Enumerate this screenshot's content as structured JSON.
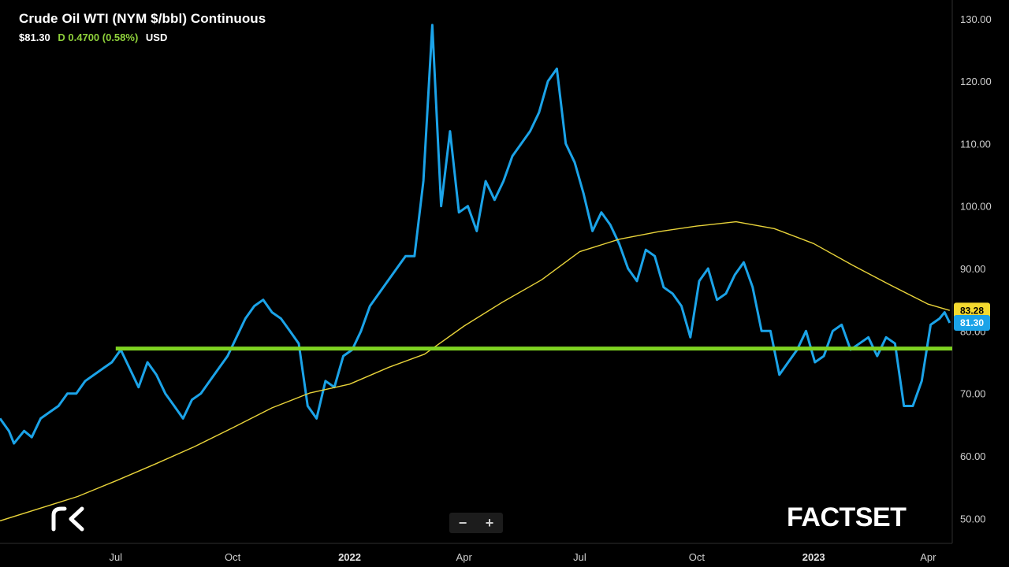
{
  "header": {
    "title": "Crude Oil WTI (NYM $/bbl) Continuous",
    "price": "$81.30",
    "change": "D 0.4700 (0.58%)",
    "currency": "USD"
  },
  "zoom": {
    "minus_label": "−",
    "plus_label": "+"
  },
  "brand": {
    "factset": "FACTSET",
    "logo_icon": "rk-logo-icon"
  },
  "colors": {
    "price_line": "#1ba3e8",
    "ma_line": "#e8d33a",
    "support_line": "#7ed321",
    "price_badge": "#1ba3e8",
    "ma_badge": "#f4d92f"
  },
  "chart_data": {
    "type": "line",
    "title": "Crude Oil WTI (NYM $/bbl) Continuous",
    "xlabel": "",
    "ylabel": "",
    "ylim": [
      46,
      133
    ],
    "x_tick_labels": [
      "Jul",
      "Oct",
      "2022",
      "Apr",
      "Jul",
      "Oct",
      "2023",
      "Apr"
    ],
    "x_tick_dates": [
      "2021-07-01",
      "2021-10-01",
      "2022-01-01",
      "2022-04-01",
      "2022-07-01",
      "2022-10-01",
      "2023-01-01",
      "2023-04-01"
    ],
    "x_range": [
      "2021-04-01",
      "2023-04-20"
    ],
    "y_ticks": [
      50,
      60,
      70,
      80,
      90,
      100,
      110,
      120,
      130
    ],
    "y_tick_labels": [
      "50.00",
      "60.00",
      "70.00",
      "80.00",
      "90.00",
      "100.00",
      "110.00",
      "120.00",
      "130.00"
    ],
    "grid": false,
    "series": [
      {
        "kind": "price",
        "points": [
          [
            "2021-04-01",
            66
          ],
          [
            "2021-04-08",
            64
          ],
          [
            "2021-04-12",
            62
          ],
          [
            "2021-04-20",
            64
          ],
          [
            "2021-04-26",
            63
          ],
          [
            "2021-05-03",
            66
          ],
          [
            "2021-05-10",
            67
          ],
          [
            "2021-05-17",
            68
          ],
          [
            "2021-05-24",
            70
          ],
          [
            "2021-05-31",
            70
          ],
          [
            "2021-06-07",
            72
          ],
          [
            "2021-06-14",
            73
          ],
          [
            "2021-06-21",
            74
          ],
          [
            "2021-06-28",
            75
          ],
          [
            "2021-07-05",
            77
          ],
          [
            "2021-07-12",
            74
          ],
          [
            "2021-07-19",
            71
          ],
          [
            "2021-07-26",
            75
          ],
          [
            "2021-08-02",
            73
          ],
          [
            "2021-08-09",
            70
          ],
          [
            "2021-08-16",
            68
          ],
          [
            "2021-08-23",
            66
          ],
          [
            "2021-08-30",
            69
          ],
          [
            "2021-09-06",
            70
          ],
          [
            "2021-09-13",
            72
          ],
          [
            "2021-09-20",
            74
          ],
          [
            "2021-09-27",
            76
          ],
          [
            "2021-10-04",
            79
          ],
          [
            "2021-10-11",
            82
          ],
          [
            "2021-10-18",
            84
          ],
          [
            "2021-10-25",
            85
          ],
          [
            "2021-11-01",
            83
          ],
          [
            "2021-11-08",
            82
          ],
          [
            "2021-11-15",
            80
          ],
          [
            "2021-11-22",
            78
          ],
          [
            "2021-11-29",
            68
          ],
          [
            "2021-12-06",
            66
          ],
          [
            "2021-12-13",
            72
          ],
          [
            "2021-12-20",
            71
          ],
          [
            "2021-12-27",
            76
          ],
          [
            "2022-01-03",
            77
          ],
          [
            "2022-01-10",
            80
          ],
          [
            "2022-01-17",
            84
          ],
          [
            "2022-01-24",
            86
          ],
          [
            "2022-01-31",
            88
          ],
          [
            "2022-02-07",
            90
          ],
          [
            "2022-02-14",
            92
          ],
          [
            "2022-02-21",
            92
          ],
          [
            "2022-02-28",
            104
          ],
          [
            "2022-03-07",
            129
          ],
          [
            "2022-03-14",
            100
          ],
          [
            "2022-03-21",
            112
          ],
          [
            "2022-03-28",
            99
          ],
          [
            "2022-04-04",
            100
          ],
          [
            "2022-04-11",
            96
          ],
          [
            "2022-04-18",
            104
          ],
          [
            "2022-04-25",
            101
          ],
          [
            "2022-05-02",
            104
          ],
          [
            "2022-05-09",
            108
          ],
          [
            "2022-05-16",
            110
          ],
          [
            "2022-05-23",
            112
          ],
          [
            "2022-05-30",
            115
          ],
          [
            "2022-06-06",
            120
          ],
          [
            "2022-06-13",
            122
          ],
          [
            "2022-06-20",
            110
          ],
          [
            "2022-06-27",
            107
          ],
          [
            "2022-07-04",
            102
          ],
          [
            "2022-07-11",
            96
          ],
          [
            "2022-07-18",
            99
          ],
          [
            "2022-07-25",
            97
          ],
          [
            "2022-08-01",
            94
          ],
          [
            "2022-08-08",
            90
          ],
          [
            "2022-08-15",
            88
          ],
          [
            "2022-08-22",
            93
          ],
          [
            "2022-08-29",
            92
          ],
          [
            "2022-09-05",
            87
          ],
          [
            "2022-09-12",
            86
          ],
          [
            "2022-09-19",
            84
          ],
          [
            "2022-09-26",
            79
          ],
          [
            "2022-10-03",
            88
          ],
          [
            "2022-10-10",
            90
          ],
          [
            "2022-10-17",
            85
          ],
          [
            "2022-10-24",
            86
          ],
          [
            "2022-10-31",
            89
          ],
          [
            "2022-11-07",
            91
          ],
          [
            "2022-11-14",
            87
          ],
          [
            "2022-11-21",
            80
          ],
          [
            "2022-11-28",
            80
          ],
          [
            "2022-12-05",
            73
          ],
          [
            "2022-12-12",
            75
          ],
          [
            "2022-12-19",
            77
          ],
          [
            "2022-12-26",
            80
          ],
          [
            "2023-01-02",
            75
          ],
          [
            "2023-01-09",
            76
          ],
          [
            "2023-01-16",
            80
          ],
          [
            "2023-01-23",
            81
          ],
          [
            "2023-01-30",
            77
          ],
          [
            "2023-02-06",
            78
          ],
          [
            "2023-02-13",
            79
          ],
          [
            "2023-02-20",
            76
          ],
          [
            "2023-02-27",
            79
          ],
          [
            "2023-03-06",
            78
          ],
          [
            "2023-03-13",
            68
          ],
          [
            "2023-03-20",
            68
          ],
          [
            "2023-03-27",
            72
          ],
          [
            "2023-04-03",
            81
          ],
          [
            "2023-04-10",
            82
          ],
          [
            "2023-04-14",
            83
          ],
          [
            "2023-04-18",
            81.3
          ]
        ]
      },
      {
        "kind": "moving-average",
        "points": [
          [
            "2021-04-01",
            49.6
          ],
          [
            "2021-06-01",
            53.5
          ],
          [
            "2021-07-01",
            56
          ],
          [
            "2021-08-01",
            58.7
          ],
          [
            "2021-09-01",
            61.5
          ],
          [
            "2021-10-01",
            64.5
          ],
          [
            "2021-11-01",
            67.7
          ],
          [
            "2021-12-01",
            70.1
          ],
          [
            "2022-01-01",
            71.5
          ],
          [
            "2022-02-01",
            74.2
          ],
          [
            "2022-03-01",
            76.3
          ],
          [
            "2022-04-01",
            80.8
          ],
          [
            "2022-05-01",
            84.6
          ],
          [
            "2022-06-01",
            88.2
          ],
          [
            "2022-07-01",
            92.7
          ],
          [
            "2022-08-01",
            94.7
          ],
          [
            "2022-09-01",
            95.9
          ],
          [
            "2022-10-01",
            96.8
          ],
          [
            "2022-11-01",
            97.5
          ],
          [
            "2022-12-01",
            96.4
          ],
          [
            "2023-01-01",
            94
          ],
          [
            "2023-02-01",
            90.5
          ],
          [
            "2023-03-01",
            87.5
          ],
          [
            "2023-04-01",
            84.3
          ],
          [
            "2023-04-18",
            83.3
          ]
        ]
      },
      {
        "kind": "support",
        "points": [
          [
            "2021-07-01",
            77.2
          ],
          [
            "2023-04-20",
            77.2
          ]
        ]
      }
    ],
    "last_price": {
      "value": 81.3,
      "label": "81.30"
    },
    "ma_last": {
      "value": 83.28,
      "label": "83.28"
    }
  }
}
